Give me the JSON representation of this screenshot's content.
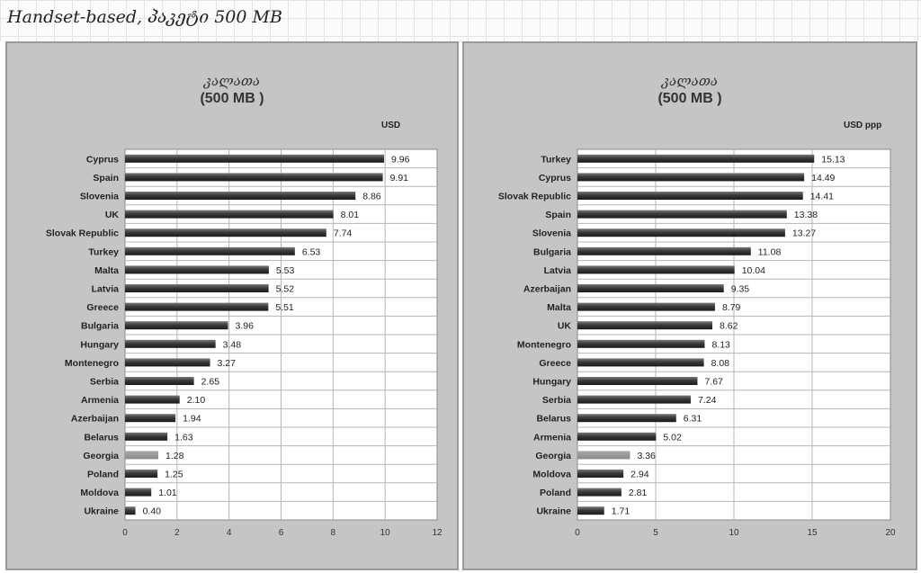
{
  "page_title": "Handset-based, პაკეტი 500 MB",
  "chart_data": [
    {
      "type": "bar",
      "orientation": "horizontal",
      "title_line1": "კალათა",
      "title_line2": "(500 MB )",
      "unit": "USD",
      "categories": [
        "Cyprus",
        "Spain",
        "Slovenia",
        "UK",
        "Slovak Republic",
        "Turkey",
        "Malta",
        "Latvia",
        "Greece",
        "Bulgaria",
        "Hungary",
        "Montenegro",
        "Serbia",
        "Armenia",
        "Azerbaijan",
        "Belarus",
        "Georgia",
        "Poland",
        "Moldova",
        "Ukraine"
      ],
      "values": [
        9.96,
        9.91,
        8.86,
        8.01,
        7.74,
        6.53,
        5.53,
        5.52,
        5.51,
        3.96,
        3.48,
        3.27,
        2.65,
        2.1,
        1.94,
        1.63,
        1.28,
        1.25,
        1.01,
        0.4
      ],
      "value_labels": [
        "9.96",
        "9.91",
        "8.86",
        "8.01",
        "7.74",
        "6.53",
        "5.53",
        "5.52",
        "5.51",
        "3.96",
        "3.48",
        "3.27",
        "2.65",
        "2.10",
        "1.94",
        "1.63",
        "1.28",
        "1.25",
        "1.01",
        "0.40"
      ],
      "xlim": [
        0,
        12
      ],
      "xticks": [
        0,
        2,
        4,
        6,
        8,
        10,
        12
      ],
      "highlight": "Georgia",
      "bar_color": "#3a3a3a",
      "highlight_color": "#8a8a8a",
      "grid": true
    },
    {
      "type": "bar",
      "orientation": "horizontal",
      "title_line1": "კალათა",
      "title_line2": "(500 MB )",
      "unit": "USD ppp",
      "categories": [
        "Turkey",
        "Cyprus",
        "Slovak Republic",
        "Spain",
        "Slovenia",
        "Bulgaria",
        "Latvia",
        "Azerbaijan",
        "Malta",
        "UK",
        "Montenegro",
        "Greece",
        "Hungary",
        "Serbia",
        "Belarus",
        "Armenia",
        "Georgia",
        "Moldova",
        "Poland",
        "Ukraine"
      ],
      "values": [
        15.13,
        14.49,
        14.41,
        13.38,
        13.27,
        11.08,
        10.04,
        9.35,
        8.79,
        8.62,
        8.13,
        8.08,
        7.67,
        7.24,
        6.31,
        5.02,
        3.36,
        2.94,
        2.81,
        1.71
      ],
      "value_labels": [
        "15.13",
        "14.49",
        "14.41",
        "13.38",
        "13.27",
        "11.08",
        "10.04",
        "9.35",
        "8.79",
        "8.62",
        "8.13",
        "8.08",
        "7.67",
        "7.24",
        "6.31",
        "5.02",
        "3.36",
        "2.94",
        "2.81",
        "1.71"
      ],
      "xlim": [
        0,
        20
      ],
      "xticks": [
        0,
        5,
        10,
        15,
        20
      ],
      "highlight": "Georgia",
      "bar_color": "#3a3a3a",
      "highlight_color": "#8a8a8a",
      "grid": true
    }
  ]
}
